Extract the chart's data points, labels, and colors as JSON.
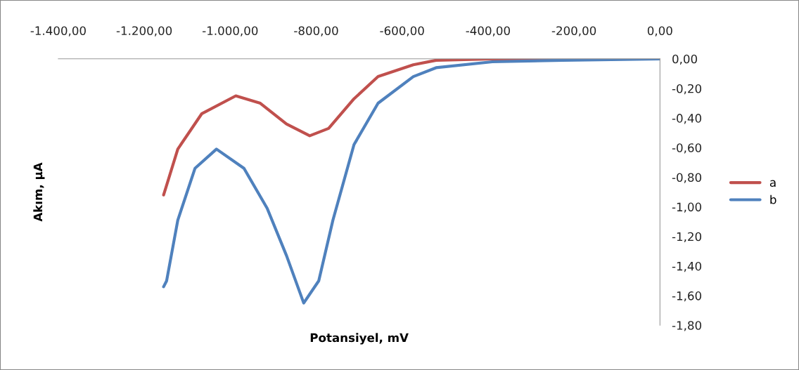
{
  "chart_data": {
    "type": "line",
    "xlabel": "Potansiyel, mV",
    "ylabel": "Akım, μA",
    "xlim": [
      -1400,
      0
    ],
    "ylim": [
      -1.8,
      0
    ],
    "xticks": [
      {
        "value": -1400,
        "label": "-1.400,00"
      },
      {
        "value": -1200,
        "label": "-1.200,00"
      },
      {
        "value": -1000,
        "label": "-1.000,00"
      },
      {
        "value": -800,
        "label": "-800,00"
      },
      {
        "value": -600,
        "label": "-600,00"
      },
      {
        "value": -400,
        "label": "-400,00"
      },
      {
        "value": -200,
        "label": "-200,00"
      },
      {
        "value": 0,
        "label": "0,00"
      }
    ],
    "yticks": [
      {
        "value": 0,
        "label": "0,00"
      },
      {
        "value": -0.2,
        "label": "-0,20"
      },
      {
        "value": -0.4,
        "label": "-0,40"
      },
      {
        "value": -0.6,
        "label": "-0,60"
      },
      {
        "value": -0.8,
        "label": "-0,80"
      },
      {
        "value": -1.0,
        "label": "-1,00"
      },
      {
        "value": -1.2,
        "label": "-1,20"
      },
      {
        "value": -1.4,
        "label": "-1,40"
      },
      {
        "value": -1.6,
        "label": "-1,60"
      },
      {
        "value": -1.8,
        "label": "-1,80"
      }
    ],
    "grid": false,
    "legend": "right",
    "marker": "none",
    "line_style": "solid",
    "series": [
      {
        "name": "a",
        "color": "#c0504d",
        "x": [
          -1155,
          -1122,
          -1066,
          -987,
          -930,
          -869,
          -815,
          -771,
          -712,
          -656,
          -574,
          -521,
          -390,
          0
        ],
        "values": [
          -0.92,
          -0.61,
          -0.37,
          -0.25,
          -0.3,
          -0.44,
          -0.52,
          -0.47,
          -0.27,
          -0.12,
          -0.04,
          -0.01,
          0.0,
          0.0
        ]
      },
      {
        "name": "b",
        "color": "#4f81bd",
        "x": [
          -1155,
          -1148,
          -1122,
          -1082,
          -1032,
          -968,
          -914,
          -869,
          -829,
          -794,
          -761,
          -712,
          -656,
          -574,
          -521,
          -390,
          -226,
          0
        ],
        "values": [
          -1.54,
          -1.5,
          -1.09,
          -0.74,
          -0.61,
          -0.74,
          -1.01,
          -1.33,
          -1.65,
          -1.5,
          -1.09,
          -0.58,
          -0.3,
          -0.12,
          -0.06,
          -0.02,
          -0.01,
          0.0
        ]
      }
    ]
  }
}
